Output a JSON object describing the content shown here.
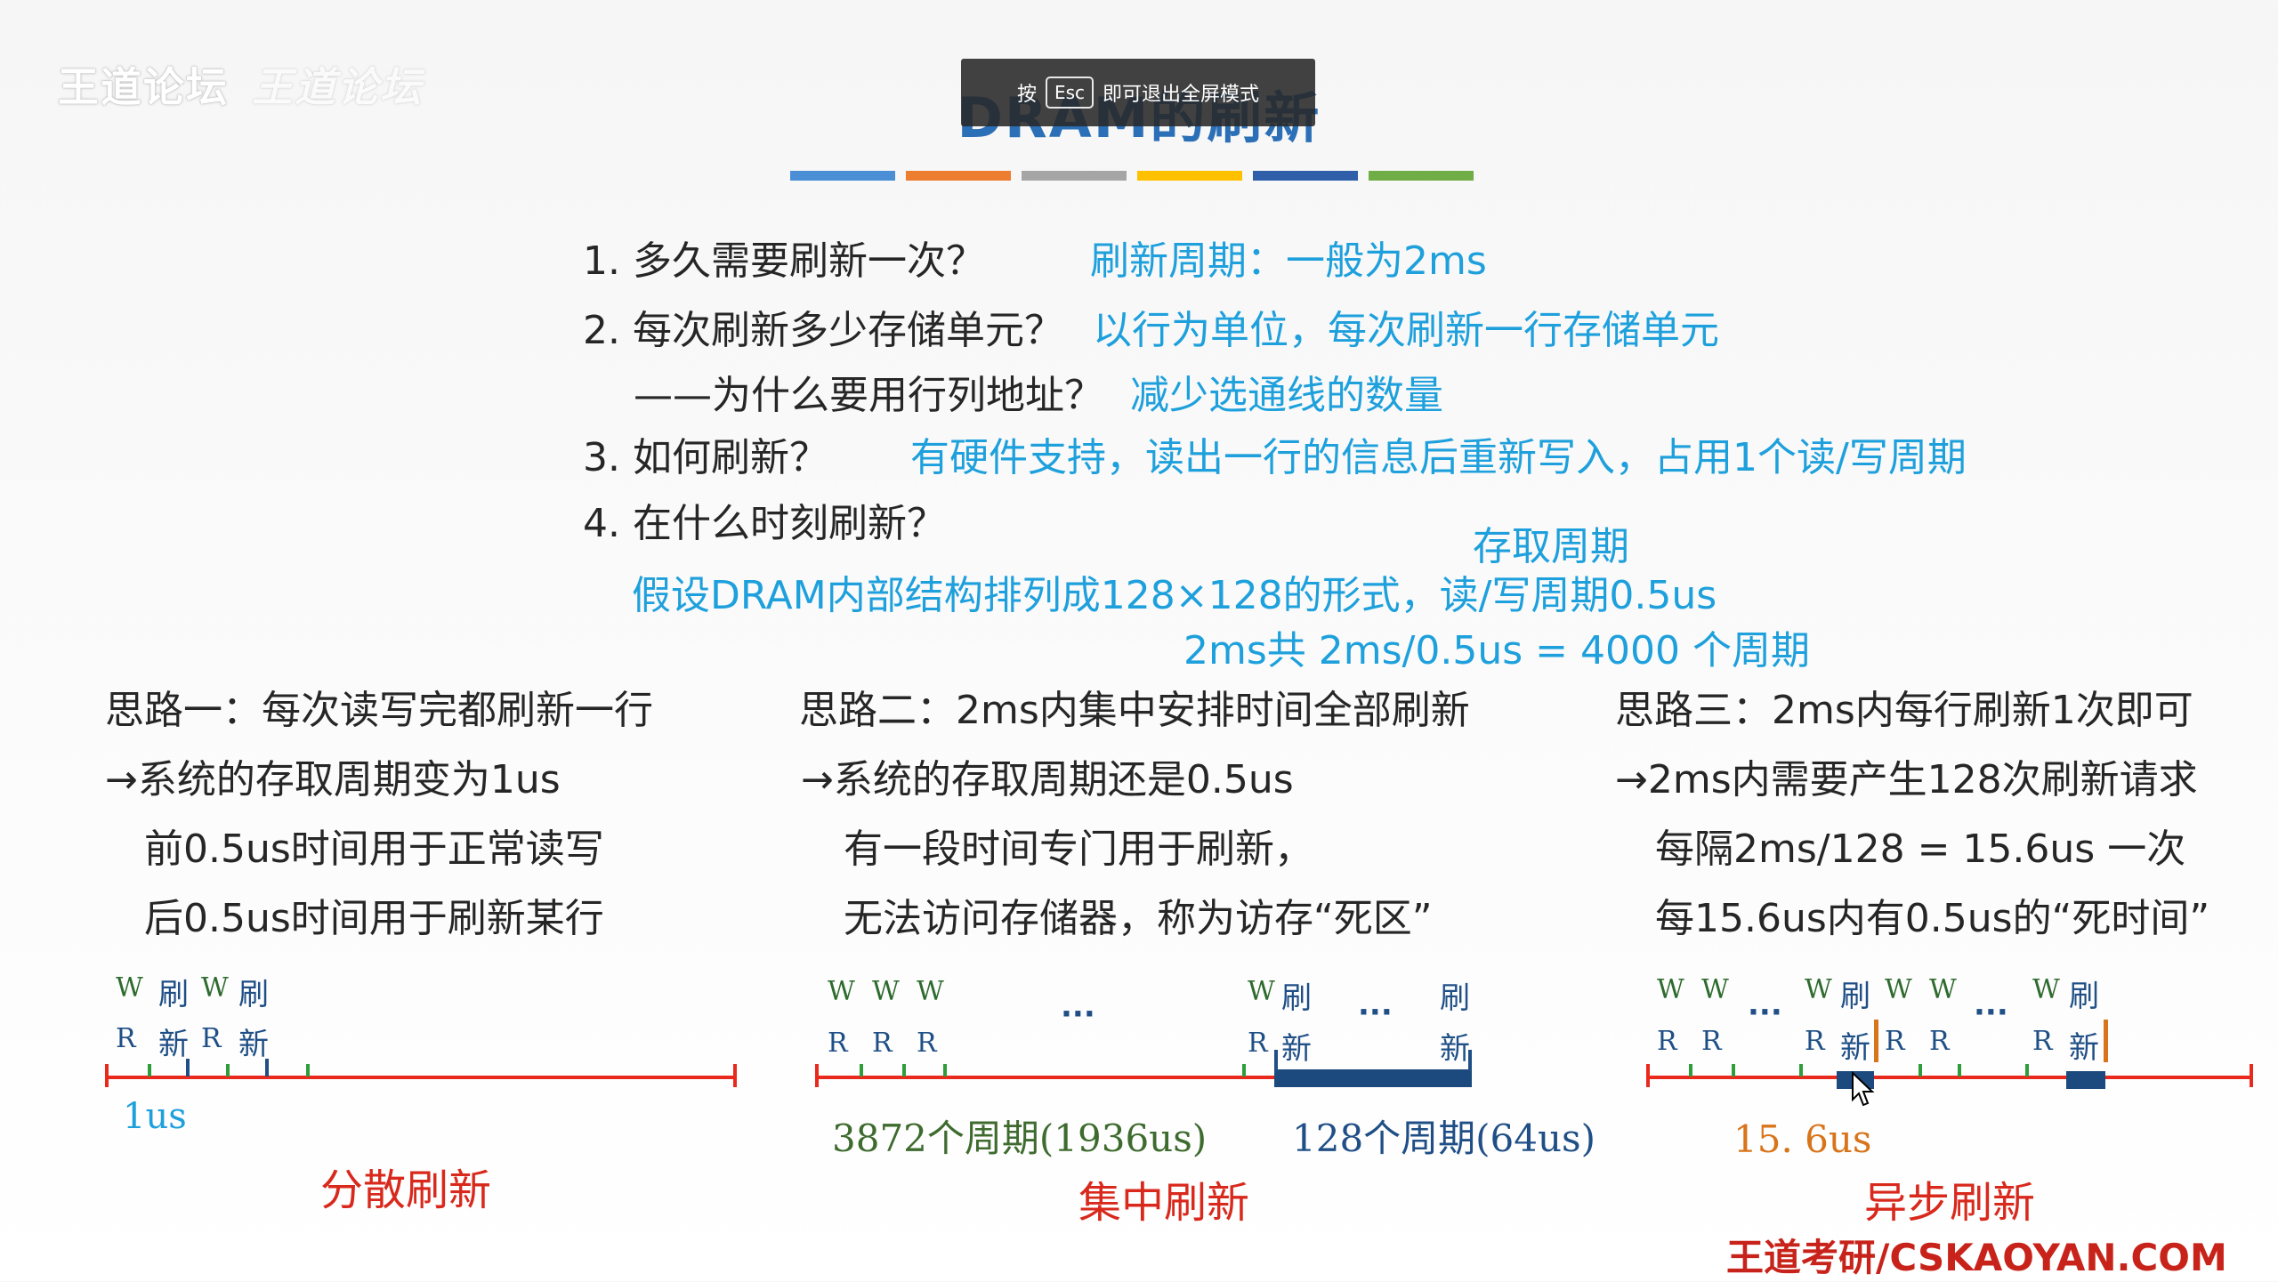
{
  "watermark": {
    "site": "王道论坛",
    "handwritten": "王道论坛"
  },
  "slide_title": "DRAM的刷新",
  "fullscreen_toast": {
    "prefix": "按",
    "key": "Esc",
    "suffix": "即可退出全屏模式"
  },
  "color_bar": [
    "#4a8fd6",
    "#ed7d31",
    "#a5a5a5",
    "#ffc000",
    "#2e5fa8",
    "#70ad47"
  ],
  "questions": [
    {
      "q": "1. 多久需要刷新一次？",
      "a": "刷新周期：一般为2ms"
    },
    {
      "q": "2. 每次刷新多少存储单元？",
      "a": "以行为单位，每次刷新一行存储单元"
    },
    {
      "q": "——为什么要用行列地址？",
      "a": "减少选通线的数量"
    },
    {
      "q": "3. 如何刷新？",
      "a": "有硬件支持，读出一行的信息后重新写入，占用1个读/写周期"
    },
    {
      "q": "4. 在什么时刻刷新？",
      "a": ""
    }
  ],
  "assumption": {
    "access_cycle_label": "存取周期",
    "line1": "假设DRAM内部结构排列成128×128的形式，读/写周期0.5us",
    "line2": "2ms共 2ms/0.5us = 4000 个周期"
  },
  "ideas": [
    {
      "title": "思路一：每次读写完都刷新一行",
      "l1": "→系统的存取周期变为1us",
      "l2": "前0.5us时间用于正常读写",
      "l3": "后0.5us时间用于刷新某行"
    },
    {
      "title": "思路二：2ms内集中安排时间全部刷新",
      "l1": "→系统的存取周期还是0.5us",
      "l2": "有一段时间专门用于刷新，",
      "l3": "无法访问存储器，称为访存“死区”"
    },
    {
      "title": "思路三：2ms内每行刷新1次即可",
      "l1": "→2ms内需要产生128次刷新请求",
      "l2": "每隔2ms/128 = 15.6us 一次",
      "l3": "每15.6us内有0.5us的“死时间”"
    }
  ],
  "diagrams": {
    "w": "W",
    "r": "R",
    "shua": "刷",
    "xin": "新",
    "dots": "···",
    "d1": {
      "unit": "1us",
      "caption": "分散刷新"
    },
    "d2": {
      "normal": "3872个周期(1936us)",
      "refresh": "128个周期(64us)",
      "caption": "集中刷新"
    },
    "d3": {
      "interval": "15. 6us",
      "caption": "异步刷新"
    }
  },
  "brand": "王道考研/CSKAOYAN.COM"
}
